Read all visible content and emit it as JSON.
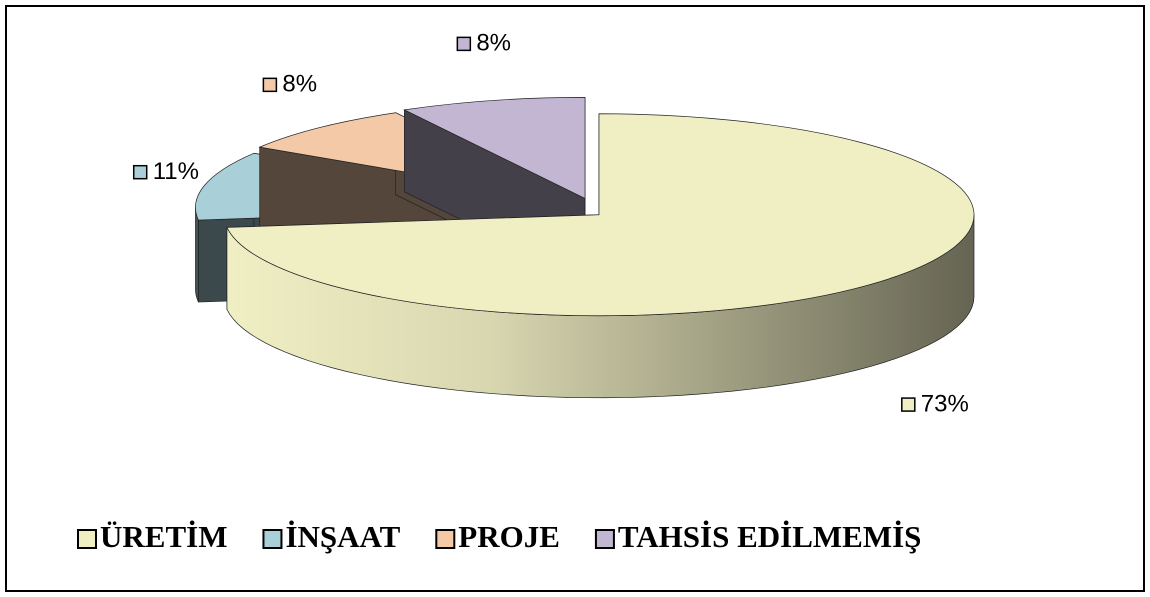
{
  "chart_data": {
    "type": "pie",
    "categories": [
      "ÜRETİM",
      "İNŞAAT",
      "PROJE",
      "TAHSİS EDİLMEMİŞ"
    ],
    "values": [
      73,
      11,
      8,
      8
    ],
    "value_labels": [
      "73%",
      "11%",
      "8%",
      "8%"
    ],
    "colors": [
      "#f0efc4",
      "#a9cfd9",
      "#f3c9a8",
      "#c3b6d2"
    ],
    "legend": "bottom"
  }
}
